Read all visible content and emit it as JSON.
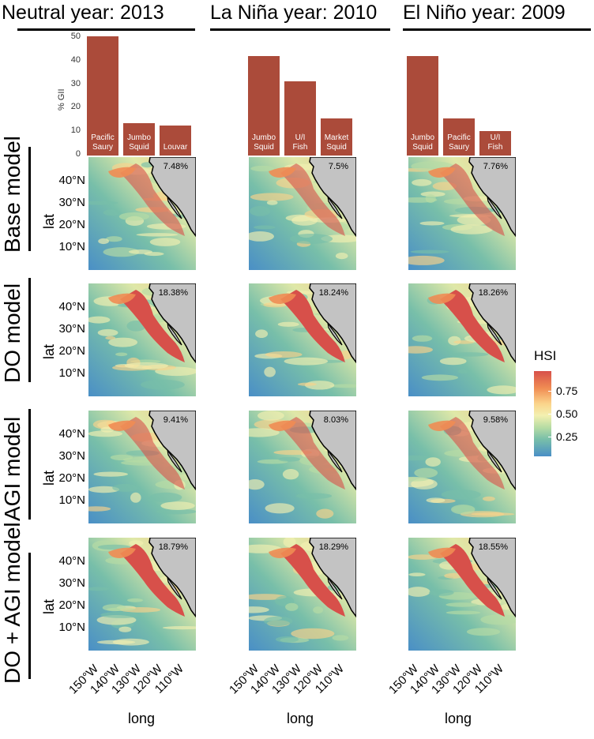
{
  "columns": [
    {
      "title": "Neutral year: 2013",
      "bars": [
        {
          "label": [
            "Pacific",
            "Saury"
          ],
          "value": 48
        },
        {
          "label": [
            "Jumbo",
            "Squid"
          ],
          "value": 13
        },
        {
          "label": [
            "Louvar"
          ],
          "value": 12
        }
      ]
    },
    {
      "title": "La Niña year: 2010",
      "bars": [
        {
          "label": [
            "Jumbo",
            "Squid"
          ],
          "value": 40
        },
        {
          "label": [
            "U/I",
            "Fish"
          ],
          "value": 30
        },
        {
          "label": [
            "Market",
            "Squid"
          ],
          "value": 15
        }
      ]
    },
    {
      "title": "El Niño year: 2009",
      "bars": [
        {
          "label": [
            "Jumbo",
            "Squid"
          ],
          "value": 40
        },
        {
          "label": [
            "Pacific",
            "Saury"
          ],
          "value": 15
        },
        {
          "label": [
            "U/I",
            "Fish"
          ],
          "value": 10
        }
      ]
    }
  ],
  "rows": [
    {
      "title": "Base model",
      "pcts": [
        "7.48%",
        "7.5%",
        "7.76%"
      ]
    },
    {
      "title": "DO model",
      "pcts": [
        "18.38%",
        "18.24%",
        "18.26%"
      ]
    },
    {
      "title": "AGI model",
      "pcts": [
        "9.41%",
        "8.03%",
        "9.58%"
      ]
    },
    {
      "title": "DO + AGI model",
      "pcts": [
        "18.79%",
        "18.29%",
        "18.55%"
      ]
    }
  ],
  "axes": {
    "gii_label": "% GII",
    "gii_ticks": [
      "0",
      "10",
      "20",
      "30",
      "40",
      "50"
    ],
    "lat_label": "lat",
    "lat_ticks": [
      "40°N",
      "30°N",
      "20°N",
      "10°N"
    ],
    "long_label": "long",
    "long_ticks": [
      "150°W",
      "140°W",
      "130°W",
      "120°W",
      "110°W"
    ]
  },
  "legend": {
    "title": "HSI",
    "ticks": [
      "0.75",
      "0.50",
      "0.25"
    ]
  },
  "colors": {
    "bar": "#ab4b3a",
    "land": "#c3c3c3",
    "hsi_high": "#d7504a",
    "hsi_mid": "#f3f0b0",
    "hsi_low": "#4a8fc6"
  },
  "chart_data": [
    {
      "type": "bar",
      "title": "Neutral year: 2013",
      "ylabel": "% GII",
      "ylim": [
        0,
        50
      ],
      "categories": [
        "Pacific Saury",
        "Jumbo Squid",
        "Louvar"
      ],
      "values": [
        48,
        13,
        12
      ]
    },
    {
      "type": "bar",
      "title": "La Niña year: 2010",
      "ylabel": "% GII",
      "ylim": [
        0,
        50
      ],
      "categories": [
        "Jumbo Squid",
        "U/I Fish",
        "Market Squid"
      ],
      "values": [
        40,
        30,
        15
      ]
    },
    {
      "type": "bar",
      "title": "El Niño year: 2009",
      "ylabel": "% GII",
      "ylim": [
        0,
        50
      ],
      "categories": [
        "Jumbo Squid",
        "Pacific Saury",
        "U/I Fish"
      ],
      "values": [
        40,
        15,
        10
      ]
    },
    {
      "type": "heatmap",
      "xlabel": "long",
      "ylabel": "lat",
      "legend_title": "HSI",
      "rows": [
        "Base model",
        "DO model",
        "AGI model",
        "DO + AGI model"
      ],
      "columns": [
        "Neutral year: 2013",
        "La Niña year: 2010",
        "El Niño year: 2009"
      ],
      "annotations": [
        [
          "7.48%",
          "7.5%",
          "7.76%"
        ],
        [
          "18.38%",
          "18.24%",
          "18.26%"
        ],
        [
          "9.41%",
          "8.03%",
          "9.58%"
        ],
        [
          "18.79%",
          "18.29%",
          "18.55%"
        ]
      ]
    }
  ]
}
